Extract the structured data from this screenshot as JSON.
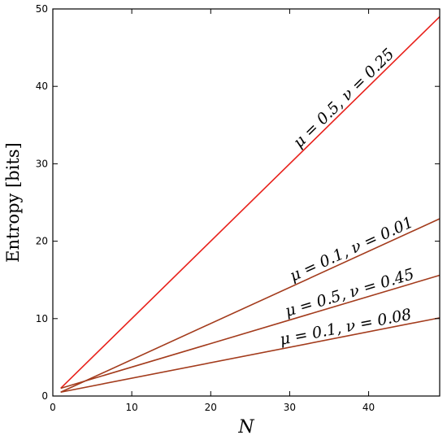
{
  "chart_data": {
    "type": "line",
    "xlabel": "N",
    "ylabel": "Entropy [bits]",
    "xlim": [
      0,
      49
    ],
    "ylim": [
      0,
      50
    ],
    "xticks": [
      0,
      10,
      20,
      30,
      40
    ],
    "yticks": [
      0,
      10,
      20,
      30,
      40,
      50
    ],
    "grid": false,
    "series": [
      {
        "name": "μ = 0.5, ν = 0.25",
        "color": "#e8211b",
        "x": [
          1,
          49
        ],
        "y": [
          1.0,
          49.0
        ]
      },
      {
        "name": "μ = 0.1, ν = 0.01",
        "color": "#a33b1c",
        "x": [
          1,
          49
        ],
        "y": [
          0.5,
          22.9
        ]
      },
      {
        "name": "μ = 0.5, ν = 0.45",
        "color": "#a33b1c",
        "x": [
          1,
          49
        ],
        "y": [
          1.0,
          15.6
        ]
      },
      {
        "name": "μ = 0.1, ν = 0.08",
        "color": "#a33b1c",
        "x": [
          1,
          49
        ],
        "y": [
          0.5,
          10.1
        ]
      }
    ]
  }
}
